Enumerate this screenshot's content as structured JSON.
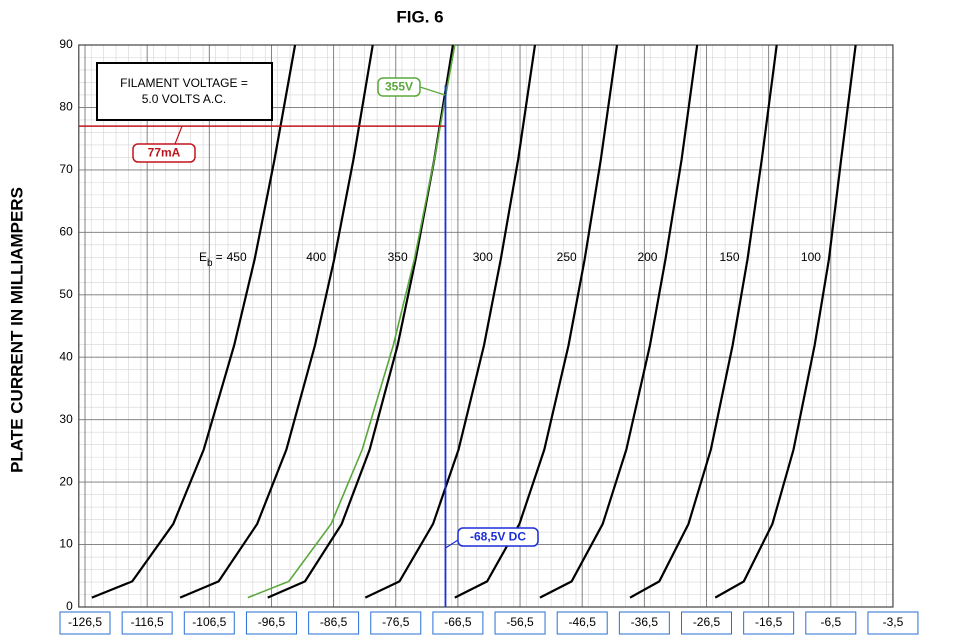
{
  "chart_data": {
    "type": "line",
    "title": "FIG. 6",
    "y_label": "PLATE CURRENT IN MILLIAMPERS",
    "xlim": [
      -127.5,
      -3.5
    ],
    "xticks": [
      {
        "value": -126.5,
        "label": "-126,5"
      },
      {
        "value": -116.5,
        "label": "-116,5"
      },
      {
        "value": -106.5,
        "label": "-106,5"
      },
      {
        "value": -96.5,
        "label": "-96,5"
      },
      {
        "value": -86.5,
        "label": "-86,5"
      },
      {
        "value": -76.5,
        "label": "-76,5"
      },
      {
        "value": -66.5,
        "label": "-66,5"
      },
      {
        "value": -56.5,
        "label": "-56,5"
      },
      {
        "value": -46.5,
        "label": "-46,5"
      },
      {
        "value": -36.5,
        "label": "-36,5"
      },
      {
        "value": -26.5,
        "label": "-26,5"
      },
      {
        "value": -16.5,
        "label": "-16,5"
      },
      {
        "value": -6.5,
        "label": "-6,5"
      },
      {
        "value": -3.5,
        "label": "-3,5"
      }
    ],
    "ylim": [
      0,
      90
    ],
    "yticks": [
      0,
      10,
      20,
      30,
      40,
      50,
      60,
      70,
      80,
      90
    ],
    "grid": true,
    "series_label_prefix": "E",
    "series_label_subscript": "b",
    "series_label_equals": "=",
    "series": [
      {
        "name": "450",
        "color": "#000000",
        "x": [
          -125.4,
          -118.9,
          -112.3,
          -107.4,
          -102.5,
          -99.2,
          -96.0,
          -92.7
        ],
        "values": [
          1.5,
          4.1,
          13.3,
          25.2,
          41.9,
          55.7,
          71.7,
          90
        ]
      },
      {
        "name": "400",
        "color": "#000000",
        "x": [
          -111.2,
          -105.0,
          -98.8,
          -94.1,
          -89.5,
          -86.4,
          -83.3,
          -80.2
        ],
        "values": [
          1.5,
          4.1,
          13.3,
          25.2,
          41.9,
          55.7,
          71.7,
          90
        ]
      },
      {
        "name": "350",
        "color": "#000000",
        "x": [
          -97.1,
          -91.1,
          -85.2,
          -80.7,
          -76.2,
          -73.3,
          -70.3,
          -67.3
        ],
        "values": [
          1.5,
          4.1,
          13.3,
          25.2,
          41.9,
          55.7,
          71.7,
          90
        ]
      },
      {
        "name": "300",
        "color": "#000000",
        "x": [
          -81.4,
          -75.9,
          -70.5,
          -66.4,
          -62.3,
          -59.6,
          -56.8,
          -54.1
        ],
        "values": [
          1.5,
          4.1,
          13.3,
          25.2,
          41.9,
          55.7,
          71.7,
          90
        ]
      },
      {
        "name": "250",
        "color": "#000000",
        "x": [
          -67.0,
          -61.8,
          -56.6,
          -52.6,
          -48.7,
          -46.1,
          -43.5,
          -40.9
        ],
        "values": [
          1.5,
          4.1,
          13.3,
          25.2,
          41.9,
          55.7,
          71.7,
          90
        ]
      },
      {
        "name": "200",
        "color": "#000000",
        "x": [
          -53.3,
          -48.2,
          -43.2,
          -39.4,
          -35.6,
          -33.1,
          -30.5,
          -28.0
        ],
        "values": [
          1.5,
          4.1,
          13.3,
          25.2,
          41.9,
          55.7,
          71.7,
          90
        ]
      },
      {
        "name": "150",
        "color": "#000000",
        "x": [
          -38.8,
          -34.1,
          -29.4,
          -25.8,
          -22.3,
          -19.9,
          -17.6,
          -15.2
        ],
        "values": [
          1.5,
          4.1,
          13.3,
          25.2,
          41.9,
          55.7,
          71.7,
          90
        ]
      },
      {
        "name": "100",
        "color": "#000000",
        "x": [
          -25.1,
          -20.5,
          -15.9,
          -12.5,
          -9.1,
          -6.8,
          -6.0,
          -5.3
        ],
        "values": [
          1.5,
          4.1,
          13.3,
          25.2,
          41.9,
          55.7,
          71.7,
          90
        ]
      },
      {
        "name": "355V",
        "color": "#5aa83c",
        "x": [
          -100.3,
          -93.7,
          -86.9,
          -81.9,
          -76.9,
          -73.5,
          -70.3,
          -67.0
        ],
        "values": [
          1.5,
          4.1,
          13.3,
          25.2,
          41.9,
          55.7,
          71.7,
          90
        ]
      }
    ],
    "annotations": {
      "filament": [
        "FILAMENT VOLTAGE =",
        "5.0 VOLTS A.C."
      ],
      "current_line": {
        "value": 77,
        "label": "77mA",
        "color": "#c0141c"
      },
      "bias_line": {
        "value": -68.5,
        "label": "-68,5V DC",
        "color": "#1a2fd8"
      }
    }
  }
}
